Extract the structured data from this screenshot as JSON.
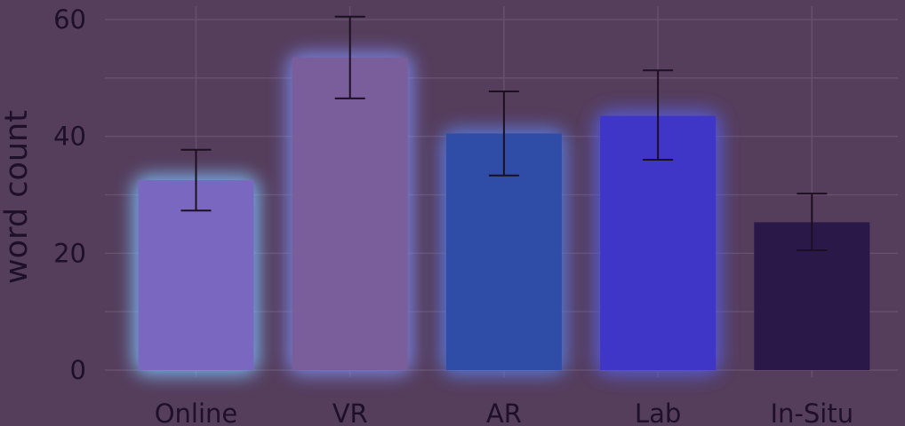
{
  "chart_data": {
    "type": "bar",
    "categories": [
      "Online",
      "VR",
      "AR",
      "Lab",
      "In-Situ"
    ],
    "values": [
      32.5,
      53.5,
      40.5,
      43.5,
      25.3
    ],
    "error_low": [
      27.3,
      46.5,
      33.3,
      36.0,
      20.5
    ],
    "error_high": [
      37.7,
      60.5,
      47.7,
      51.3,
      30.2
    ],
    "colors": [
      "#7a68c0",
      "#7a5e9c",
      "#2f4ca6",
      "#3f36c8",
      "#2a1848"
    ],
    "glow_colors": [
      "#7ec2ff",
      "#7d8cf0",
      "#5b7fea",
      "#5660e8",
      ""
    ],
    "ylabel": "word count",
    "xlabel": "",
    "ylim": [
      0,
      60
    ],
    "yticks": [
      0,
      20,
      40,
      60
    ],
    "grid": true
  }
}
